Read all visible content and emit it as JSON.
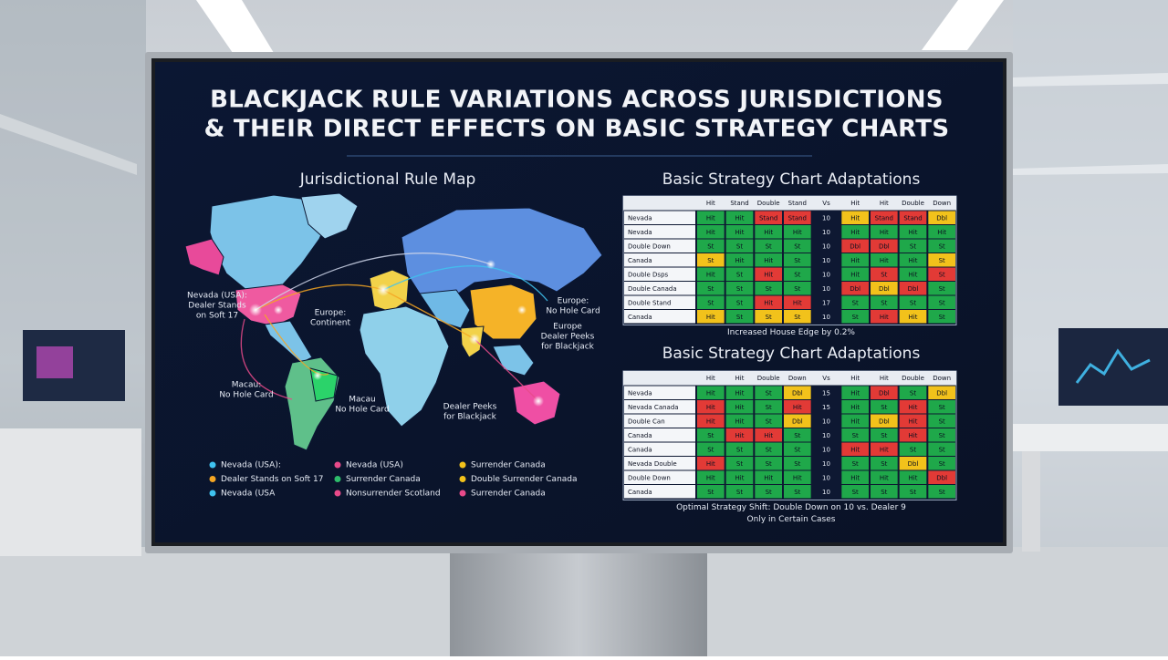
{
  "title": [
    "BLACKJACK RULE VARIATIONS ACROSS JURISDICTIONS",
    "& THEIR DIRECT EFFECTS ON BASIC STRATEGY CHARTS"
  ],
  "map": {
    "title": "Jurisdictional Rule Map",
    "labels": [
      {
        "lines": [
          "Nevada (USA):",
          "Dealer Stands",
          "on Soft 17"
        ]
      },
      {
        "lines": [
          "Europe:",
          "Continent"
        ]
      },
      {
        "lines": [
          "Europe:",
          "No Hole Card"
        ]
      },
      {
        "lines": [
          "Europe",
          "Dealer Peeks",
          "for Blackjack"
        ]
      },
      {
        "lines": [
          "Macau:",
          "No Hole Card"
        ]
      },
      {
        "lines": [
          "Macau",
          "No Hole Card"
        ]
      },
      {
        "lines": [
          "Dealer Peeks",
          "for Blackjack"
        ]
      }
    ],
    "legend": [
      {
        "text": "Nevada (USA):",
        "color": "#3fc3f0"
      },
      {
        "text": "Dealer Stands on Soft 17",
        "color": "#f5a623"
      },
      {
        "text": "Nevada (USA",
        "color": "#3fc3f0"
      },
      {
        "text": "Nevada (USA)",
        "color": "#e84a8a"
      },
      {
        "text": "Surrender Canada",
        "color": "#2ebd6b"
      },
      {
        "text": "Nonsurrender Scotland",
        "color": "#e84a8a"
      },
      {
        "text": "Surrender Canada",
        "color": "#f2c21b"
      },
      {
        "text": "Double Surrender Canada",
        "color": "#f2c21b"
      },
      {
        "text": "Surrender Canada",
        "color": "#e84a8a"
      }
    ]
  },
  "palette": {
    "g": "#1fa84a",
    "r": "#e23a36",
    "y": "#f2c21b",
    "d": "#0e1832"
  },
  "tables": [
    {
      "title": "Basic Strategy Chart Adaptations",
      "header": [
        "Hit",
        "Stand",
        "Double",
        "Stand",
        "Vs",
        "Hit",
        "Hit",
        "Double",
        "Down"
      ],
      "rows": [
        {
          "label": "Nevada",
          "colors": "ggrrdyrry",
          "cells": [
            "Hit",
            "Hit",
            "Stand",
            "Stand",
            "10",
            "Hit",
            "Stand",
            "Stand",
            "Dbl"
          ]
        },
        {
          "label": "Nevada",
          "colors": "ggggdgggg",
          "cells": [
            "Hit",
            "Hit",
            "Hit",
            "Hit",
            "10",
            "Hit",
            "Hit",
            "Hit",
            "Hit"
          ]
        },
        {
          "label": "Double Down",
          "colors": "ggggdrrgg",
          "cells": [
            "St",
            "St",
            "St",
            "St",
            "10",
            "Dbl",
            "Dbl",
            "St",
            "St"
          ]
        },
        {
          "label": "Canada",
          "colors": "ygggdgggy",
          "cells": [
            "St",
            "Hit",
            "Hit",
            "St",
            "10",
            "Hit",
            "Hit",
            "Hit",
            "St"
          ]
        },
        {
          "label": "Double Dsps",
          "colors": "ggrgdgrgr",
          "cells": [
            "Hit",
            "St",
            "Hit",
            "St",
            "10",
            "Hit",
            "St",
            "Hit",
            "St"
          ]
        },
        {
          "label": "Double Canada",
          "colors": "ggggdryrg",
          "cells": [
            "St",
            "St",
            "St",
            "St",
            "10",
            "Dbl",
            "Dbl",
            "Dbl",
            "St"
          ]
        },
        {
          "label": "Double Stand",
          "colors": "ggrrdgggg",
          "cells": [
            "St",
            "St",
            "Hit",
            "Hit",
            "17",
            "St",
            "St",
            "St",
            "St"
          ]
        },
        {
          "label": "Canada",
          "colors": "ygyydgryg",
          "cells": [
            "Hit",
            "St",
            "St",
            "St",
            "10",
            "St",
            "Hit",
            "Hit",
            "St"
          ]
        }
      ],
      "note": [
        "Increased House Edge by 0.2%"
      ]
    },
    {
      "title": "Basic Strategy Chart Adaptations",
      "header": [
        "Hit",
        "Hit",
        "Double",
        "Down",
        "Vs",
        "Hit",
        "Hit",
        "Double",
        "Down"
      ],
      "rows": [
        {
          "label": "Nevada",
          "colors": "gggydgrgy",
          "cells": [
            "Hit",
            "Hit",
            "St",
            "Dbl",
            "15",
            "Hit",
            "Dbl",
            "St",
            "Dbl"
          ]
        },
        {
          "label": "Nevada Canada",
          "colors": "rggrdggrg",
          "cells": [
            "Hit",
            "Hit",
            "St",
            "Hit",
            "15",
            "Hit",
            "St",
            "Hit",
            "St"
          ]
        },
        {
          "label": "Double Can",
          "colors": "rggydgyrg",
          "cells": [
            "Hit",
            "Hit",
            "St",
            "Dbl",
            "10",
            "Hit",
            "Dbl",
            "Hit",
            "St"
          ]
        },
        {
          "label": "Canada",
          "colors": "grrgdggrg",
          "cells": [
            "St",
            "Hit",
            "Hit",
            "St",
            "10",
            "St",
            "St",
            "Hit",
            "St"
          ]
        },
        {
          "label": "Canada",
          "colors": "ggggdrrgg",
          "cells": [
            "St",
            "St",
            "St",
            "St",
            "10",
            "Hit",
            "Hit",
            "St",
            "St"
          ]
        },
        {
          "label": "Nevada Double",
          "colors": "rgggdggyg",
          "cells": [
            "Hit",
            "St",
            "St",
            "St",
            "10",
            "St",
            "St",
            "Dbl",
            "St"
          ]
        },
        {
          "label": "Double Down",
          "colors": "ggggdgggr",
          "cells": [
            "Hit",
            "Hit",
            "Hit",
            "Hit",
            "10",
            "Hit",
            "Hit",
            "Hit",
            "Dbl"
          ]
        },
        {
          "label": "Canada",
          "colors": "ggggdgggg",
          "cells": [
            "St",
            "St",
            "St",
            "St",
            "10",
            "St",
            "St",
            "St",
            "St"
          ]
        }
      ],
      "note": [
        "Optimal Strategy Shift: Double Down on 10 vs. Dealer 9",
        "Only in Certain Cases"
      ]
    }
  ]
}
